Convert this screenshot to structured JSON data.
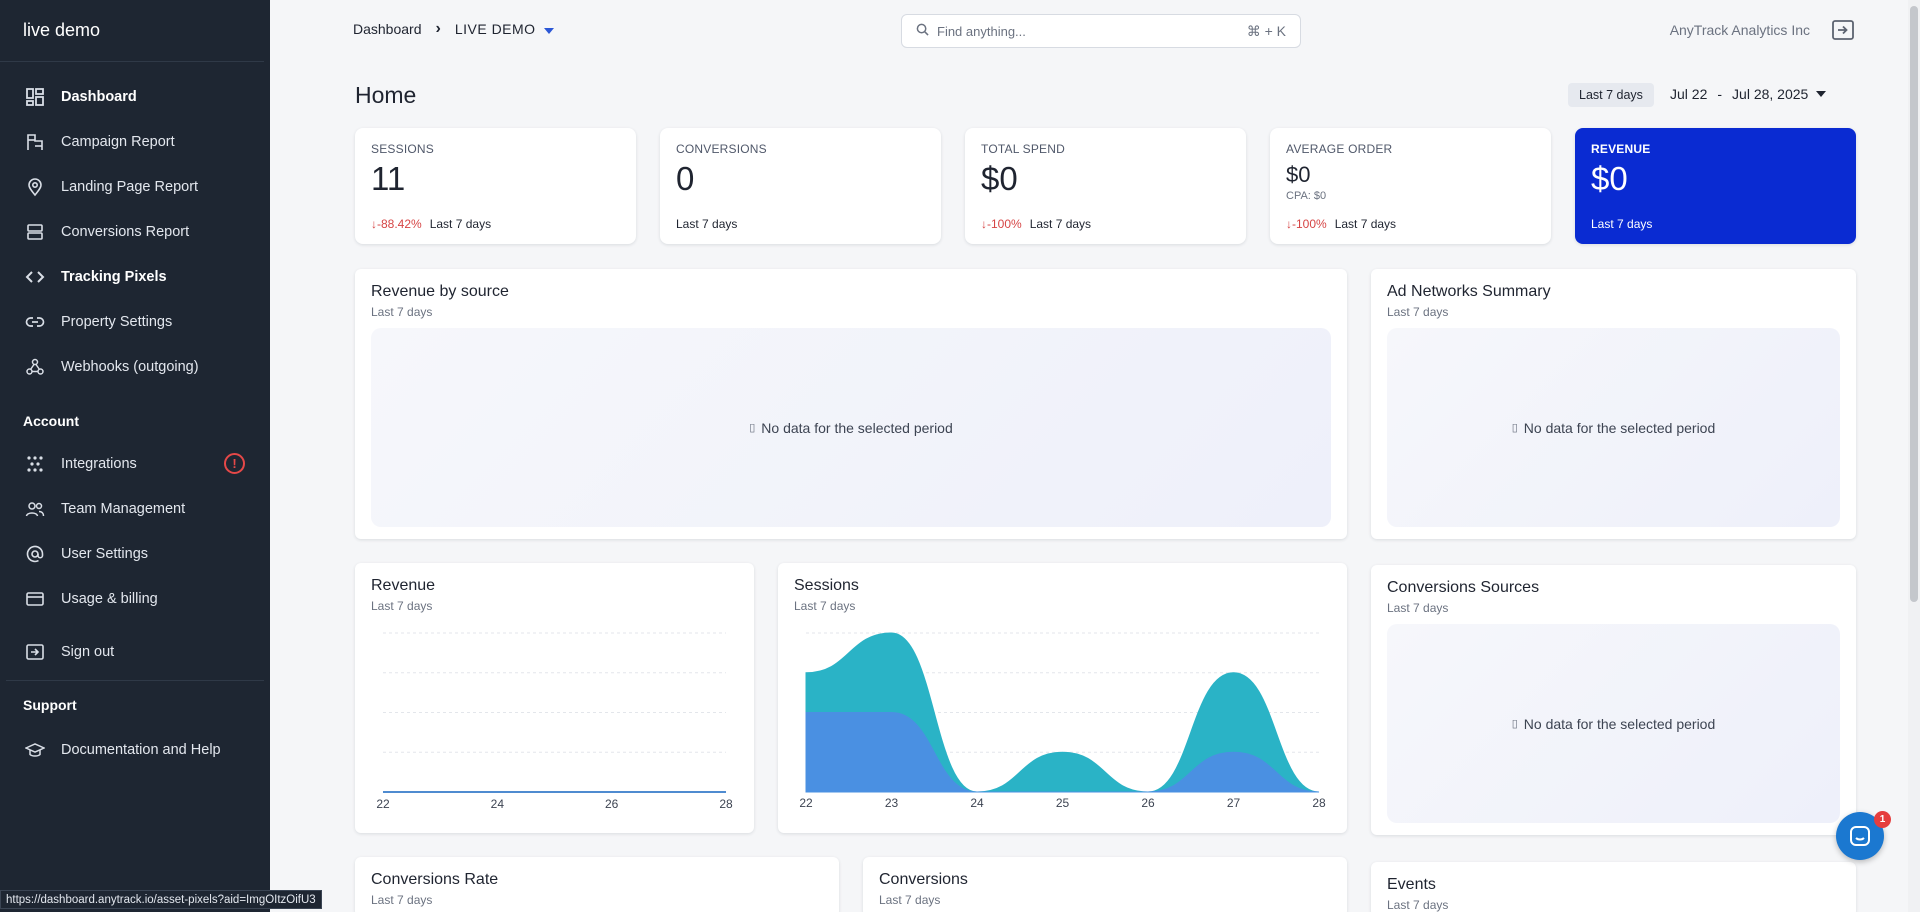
{
  "sidebar": {
    "brand": "live demo",
    "items": [
      {
        "label": "Dashboard",
        "icon": "dashboard-icon"
      },
      {
        "label": "Campaign Report",
        "icon": "campaign-icon"
      },
      {
        "label": "Landing Page Report",
        "icon": "map-pin-icon"
      },
      {
        "label": "Conversions Report",
        "icon": "server-icon"
      },
      {
        "label": "Tracking Pixels",
        "icon": "code-icon"
      },
      {
        "label": "Property Settings",
        "icon": "link-icon"
      },
      {
        "label": "Webhooks (outgoing)",
        "icon": "webhook-icon"
      }
    ],
    "account_title": "Account",
    "account_items": [
      {
        "label": "Integrations",
        "icon": "integrations-icon",
        "alert": "!"
      },
      {
        "label": "Team Management",
        "icon": "team-icon"
      },
      {
        "label": "User Settings",
        "icon": "at-icon"
      },
      {
        "label": "Usage & billing",
        "icon": "credit-card-icon"
      }
    ],
    "sign_out": "Sign out",
    "support_title": "Support",
    "support_items": [
      {
        "label": "Documentation and Help",
        "icon": "graduation-cap-icon"
      }
    ]
  },
  "topbar": {
    "breadcrumb_root": "Dashboard",
    "breadcrumb_current": "LIVE DEMO",
    "search_placeholder": "Find anything...",
    "search_shortcut": "⌘ + K",
    "company": "AnyTrack Analytics Inc"
  },
  "page": {
    "title": "Home",
    "range_pill": "Last 7 days",
    "range_start": "Jul 22",
    "range_sep": "-",
    "range_end": "Jul 28, 2025"
  },
  "kpis": {
    "sessions": {
      "label": "SESSIONS",
      "value": "11",
      "delta": "-88.42%",
      "period": "Last 7 days"
    },
    "conversions": {
      "label": "CONVERSIONS",
      "value": "0",
      "period": "Last 7 days"
    },
    "spend": {
      "label": "TOTAL SPEND",
      "value": "$0",
      "delta": "-100%",
      "period": "Last 7 days"
    },
    "avg_order": {
      "label": "AVERAGE ORDER",
      "value": "$0",
      "sub": "CPA: $0",
      "delta": "-100%",
      "period": "Last 7 days"
    },
    "revenue": {
      "label": "REVENUE",
      "value": "$0",
      "period": "Last 7 days"
    }
  },
  "panels": {
    "revenue_by_source": {
      "title": "Revenue by source",
      "sub": "Last 7 days",
      "empty": "No data for the selected period"
    },
    "ad_networks": {
      "title": "Ad Networks Summary",
      "sub": "Last 7 days",
      "empty": "No data for the selected period"
    },
    "revenue": {
      "title": "Revenue",
      "sub": "Last 7 days"
    },
    "sessions": {
      "title": "Sessions",
      "sub": "Last 7 days"
    },
    "conversion_sources": {
      "title": "Conversions Sources",
      "sub": "Last 7 days",
      "empty": "No data for the selected period"
    },
    "conversion_rate": {
      "title": "Conversions Rate",
      "sub": "Last 7 days"
    },
    "conversions": {
      "title": "Conversions",
      "sub": "Last 7 days"
    },
    "events": {
      "title": "Events",
      "sub": "Last 7 days"
    }
  },
  "chat": {
    "badge": "1"
  },
  "status_url": "https://dashboard.anytrack.io/asset-pixels?aid=ImgOItzOifU3",
  "chart_data": [
    {
      "type": "line",
      "x": [
        "22",
        "23",
        "24",
        "25",
        "26",
        "27",
        "28"
      ],
      "x_tick_labels": [
        "22",
        "24",
        "26",
        "28"
      ],
      "series": [
        {
          "values": [
            0,
            0,
            0,
            0,
            0,
            0,
            0
          ],
          "color": "#1565c0"
        }
      ],
      "ylim": [
        0,
        4
      ]
    },
    {
      "type": "area",
      "x": [
        "22",
        "23",
        "24",
        "25",
        "26",
        "27",
        "28"
      ],
      "series": [
        {
          "values": [
            2,
            2,
            0,
            0,
            0,
            1,
            0
          ],
          "color": "#4a90e2"
        },
        {
          "values": [
            1,
            2,
            0,
            1,
            0,
            2,
            0
          ],
          "color": "#2ab3c6"
        }
      ],
      "stacked": true,
      "ylim": [
        0,
        4
      ]
    }
  ],
  "colors": {
    "sidebar_bg": "#1e2632",
    "accent": "#0a2bd2",
    "negative": "#d64545"
  }
}
